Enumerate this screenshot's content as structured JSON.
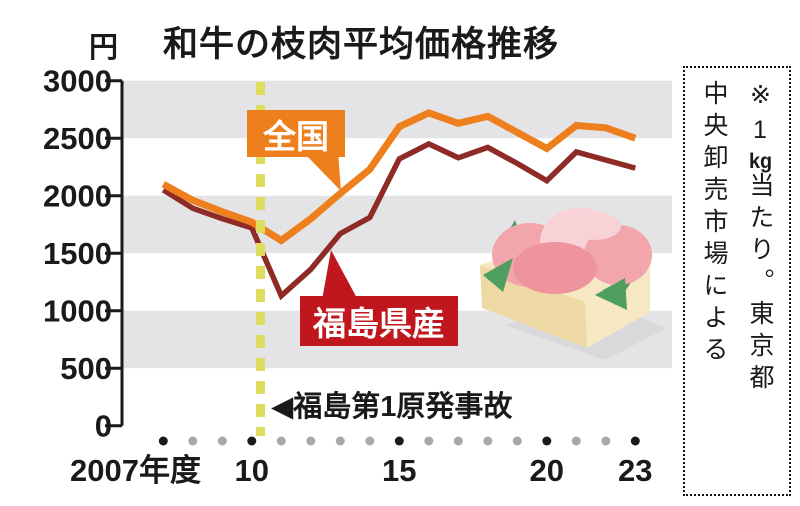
{
  "title": "和牛の枝肉平均価格推移",
  "y_axis_unit": "円",
  "labels": {
    "series_national": "全国",
    "series_fukushima": "福島県産",
    "event_annotation": "◀福島第1原発事故"
  },
  "note": {
    "full_text": "※1kg当たり。東京都中央卸売市場による",
    "l1a": "※1",
    "l1b": "kg",
    "l1c": "当たり。東京都",
    "l2": "中央卸売市場による"
  },
  "colors": {
    "national_line": "#ee7f1d",
    "fukushima_line": "#8e2b26",
    "fukushima_label_bg": "#c0161d",
    "event_line": "#dfdd60",
    "band_gray": "#e4e4e7",
    "axis": "#1a1a1a",
    "dot_major": "#1a1a1a",
    "dot_minor": "#a8a8a8",
    "shadow": "#d9d9dc",
    "tray_light": "#f5e8c2",
    "tray_dark": "#eed9a4",
    "meat_pink": "#f2a6ac",
    "meat_pink_light": "#f8d2d6",
    "meat_pink_deep": "#ee949c",
    "leaf_green": "#4e9e5f"
  },
  "chart_data": {
    "type": "line",
    "x": [
      2007,
      2008,
      2009,
      2010,
      2011,
      2012,
      2013,
      2014,
      2015,
      2016,
      2017,
      2018,
      2019,
      2020,
      2021,
      2022,
      2023
    ],
    "series": [
      {
        "name": "福島県産",
        "color": "#8e2b26",
        "values": [
          2050,
          1890,
          1800,
          1720,
          1130,
          1360,
          1670,
          1810,
          2320,
          2450,
          2330,
          2420,
          2280,
          2130,
          2380,
          2310,
          2240
        ]
      },
      {
        "name": "全国",
        "color": "#ee7f1d",
        "values": [
          2100,
          1960,
          1860,
          1770,
          1610,
          1800,
          2020,
          2230,
          2600,
          2720,
          2630,
          2690,
          2550,
          2410,
          2610,
          2590,
          2500
        ]
      }
    ],
    "y_ticks": [
      3000,
      2500,
      2000,
      1500,
      1000,
      500,
      0
    ],
    "ylim": [
      0,
      3000
    ],
    "x_ticks": [
      {
        "label": "2007年度",
        "year": 2007,
        "align": "start"
      },
      {
        "label": "10",
        "year": 2010,
        "align": "middle"
      },
      {
        "label": "15",
        "year": 2015,
        "align": "middle"
      },
      {
        "label": "20",
        "year": 2020,
        "align": "middle"
      },
      {
        "label": "23",
        "year": 2023,
        "align": "middle"
      }
    ],
    "major_years": [
      2007,
      2010,
      2015,
      2020,
      2023
    ],
    "event_line_year": 2010.3,
    "grid_bands": [
      [
        3000,
        2500
      ],
      [
        2000,
        1500
      ],
      [
        1000,
        500
      ]
    ],
    "legend_position": "inline-callouts",
    "note": "per 1kg, Tokyo Metropolitan Central Wholesale Market"
  }
}
